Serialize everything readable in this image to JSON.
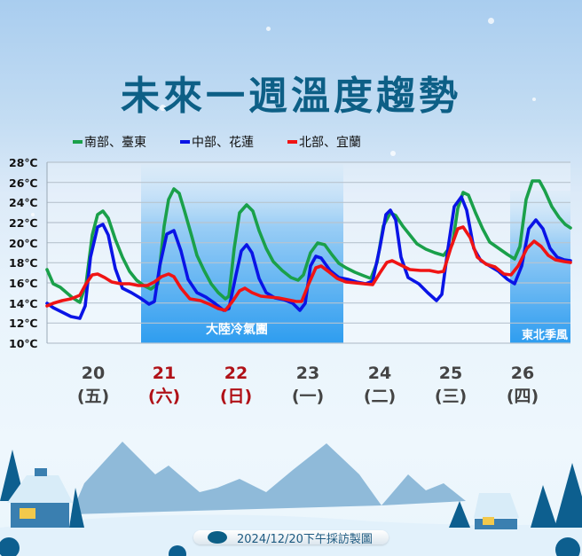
{
  "title": "未來一週溫度趨勢",
  "legend": [
    {
      "label": "南部、臺東",
      "color": "#1aa04a"
    },
    {
      "label": "中部、花蓮",
      "color": "#0a14e6"
    },
    {
      "label": "北部、宜蘭",
      "color": "#f01414"
    }
  ],
  "y_ticks": [
    "28℃",
    "26℃",
    "24℃",
    "22℃",
    "20℃",
    "18℃",
    "16℃",
    "14℃",
    "12℃",
    "10℃"
  ],
  "regions": [
    {
      "label": "大陸冷氣團"
    },
    {
      "label": "東北季風"
    }
  ],
  "days": [
    {
      "date": "20",
      "weekday": "(五)",
      "weekend": false
    },
    {
      "date": "21",
      "weekday": "(六)",
      "weekend": true
    },
    {
      "date": "22",
      "weekday": "(日)",
      "weekend": true
    },
    {
      "date": "23",
      "weekday": "(一)",
      "weekend": false
    },
    {
      "date": "24",
      "weekday": "(二)",
      "weekend": false
    },
    {
      "date": "25",
      "weekday": "(三)",
      "weekend": false
    },
    {
      "date": "26",
      "weekday": "(四)",
      "weekend": false
    }
  ],
  "footer": "2024/12/20下午採訪製圖",
  "chart_data": {
    "type": "line",
    "title": "未來一週溫度趨勢",
    "xlabel": "",
    "ylabel": "",
    "ylim": [
      10,
      28
    ],
    "grid": true,
    "legend_position": "top",
    "categories": [
      "20 (五)",
      "21 (六)",
      "22 (日)",
      "23 (一)",
      "24 (二)",
      "25 (三)",
      "26 (四)"
    ],
    "annotations": [
      {
        "text": "大陸冷氣團",
        "x_range_days": [
          "21",
          "23"
        ]
      },
      {
        "text": "東北季風",
        "x_range_days": [
          "26",
          "26"
        ]
      }
    ],
    "daily_range": {
      "南部、臺東": [
        [
          14.0,
          23.3
        ],
        [
          15.2,
          25.2
        ],
        [
          14.5,
          23.7
        ],
        [
          16.3,
          19.9
        ],
        [
          16.2,
          23.0
        ],
        [
          18.0,
          25.0
        ],
        [
          18.0,
          26.4
        ]
      ],
      "中部、花蓮": [
        [
          12.5,
          21.8
        ],
        [
          13.6,
          21.3
        ],
        [
          13.3,
          19.9
        ],
        [
          13.2,
          18.7
        ],
        [
          16.0,
          23.3
        ],
        [
          14.9,
          24.8
        ],
        [
          16.0,
          22.4
        ]
      ],
      "北部、宜蘭": [
        [
          13.7,
          17.0
        ],
        [
          15.8,
          17.0
        ],
        [
          13.1,
          15.5
        ],
        [
          14.1,
          17.6
        ],
        [
          15.8,
          18.3
        ],
        [
          17.0,
          21.6
        ],
        [
          16.9,
          20.2
        ]
      ]
    },
    "series": [
      {
        "name": "南部、臺東",
        "color": "#1aa04a",
        "points": [
          [
            53,
            304
          ],
          [
            60,
            320
          ],
          [
            68,
            324
          ],
          [
            75,
            330
          ],
          [
            82,
            336
          ],
          [
            90,
            341
          ],
          [
            97,
            320
          ],
          [
            104,
            265
          ],
          [
            110,
            242
          ],
          [
            116,
            238
          ],
          [
            122,
            246
          ],
          [
            130,
            270
          ],
          [
            138,
            290
          ],
          [
            146,
            306
          ],
          [
            154,
            316
          ],
          [
            162,
            322
          ],
          [
            170,
            326
          ],
          [
            178,
            320
          ],
          [
            185,
            255
          ],
          [
            190,
            225
          ],
          [
            196,
            213
          ],
          [
            202,
            218
          ],
          [
            208,
            238
          ],
          [
            216,
            266
          ],
          [
            222,
            288
          ],
          [
            230,
            305
          ],
          [
            238,
            320
          ],
          [
            246,
            330
          ],
          [
            254,
            337
          ],
          [
            258,
            334
          ],
          [
            264,
            280
          ],
          [
            270,
            240
          ],
          [
            278,
            231
          ],
          [
            285,
            238
          ],
          [
            292,
            260
          ],
          [
            300,
            280
          ],
          [
            308,
            295
          ],
          [
            318,
            305
          ],
          [
            328,
            313
          ],
          [
            336,
            316
          ],
          [
            342,
            310
          ],
          [
            350,
            285
          ],
          [
            358,
            274
          ],
          [
            366,
            276
          ],
          [
            374,
            287
          ],
          [
            382,
            297
          ],
          [
            390,
            302
          ],
          [
            400,
            307
          ],
          [
            410,
            311
          ],
          [
            418,
            314
          ],
          [
            425,
            296
          ],
          [
            432,
            255
          ],
          [
            440,
            240
          ],
          [
            446,
            243
          ],
          [
            454,
            255
          ],
          [
            462,
            265
          ],
          [
            470,
            275
          ],
          [
            480,
            281
          ],
          [
            490,
            285
          ],
          [
            500,
            288
          ],
          [
            510,
            275
          ],
          [
            516,
            235
          ],
          [
            522,
            217
          ],
          [
            528,
            220
          ],
          [
            536,
            240
          ],
          [
            544,
            258
          ],
          [
            552,
            273
          ],
          [
            562,
            280
          ],
          [
            572,
            287
          ],
          [
            580,
            292
          ],
          [
            586,
            278
          ],
          [
            593,
            225
          ],
          [
            600,
            204
          ],
          [
            608,
            204
          ],
          [
            614,
            215
          ],
          [
            622,
            233
          ],
          [
            630,
            245
          ],
          [
            637,
            253
          ],
          [
            643,
            257
          ]
        ]
      },
      {
        "name": "中部、花蓮",
        "color": "#0a14e6",
        "points": [
          [
            53,
            342
          ],
          [
            60,
            347
          ],
          [
            70,
            352
          ],
          [
            80,
            357
          ],
          [
            90,
            359
          ],
          [
            96,
            345
          ],
          [
            102,
            290
          ],
          [
            110,
            256
          ],
          [
            116,
            253
          ],
          [
            122,
            265
          ],
          [
            130,
            303
          ],
          [
            138,
            325
          ],
          [
            148,
            330
          ],
          [
            158,
            336
          ],
          [
            168,
            343
          ],
          [
            174,
            340
          ],
          [
            180,
            300
          ],
          [
            188,
            264
          ],
          [
            196,
            260
          ],
          [
            204,
            283
          ],
          [
            212,
            315
          ],
          [
            222,
            330
          ],
          [
            232,
            335
          ],
          [
            242,
            342
          ],
          [
            252,
            350
          ],
          [
            258,
            348
          ],
          [
            266,
            310
          ],
          [
            272,
            283
          ],
          [
            278,
            276
          ],
          [
            284,
            285
          ],
          [
            292,
            314
          ],
          [
            300,
            330
          ],
          [
            310,
            336
          ],
          [
            320,
            338
          ],
          [
            330,
            342
          ],
          [
            338,
            350
          ],
          [
            344,
            342
          ],
          [
            350,
            300
          ],
          [
            356,
            289
          ],
          [
            362,
            291
          ],
          [
            372,
            305
          ],
          [
            382,
            313
          ],
          [
            392,
            315
          ],
          [
            402,
            318
          ],
          [
            412,
            320
          ],
          [
            420,
            317
          ],
          [
            428,
            280
          ],
          [
            435,
            242
          ],
          [
            440,
            237
          ],
          [
            446,
            248
          ],
          [
            452,
            290
          ],
          [
            460,
            313
          ],
          [
            472,
            320
          ],
          [
            482,
            330
          ],
          [
            492,
            339
          ],
          [
            498,
            332
          ],
          [
            505,
            280
          ],
          [
            512,
            233
          ],
          [
            520,
            222
          ],
          [
            526,
            237
          ],
          [
            534,
            280
          ],
          [
            542,
            294
          ],
          [
            552,
            300
          ],
          [
            562,
            306
          ],
          [
            572,
            315
          ],
          [
            580,
            320
          ],
          [
            588,
            300
          ],
          [
            596,
            258
          ],
          [
            604,
            248
          ],
          [
            612,
            258
          ],
          [
            620,
            280
          ],
          [
            628,
            290
          ],
          [
            636,
            293
          ],
          [
            643,
            294
          ]
        ]
      },
      {
        "name": "北部、宜蘭",
        "color": "#f01414",
        "points": [
          [
            53,
            345
          ],
          [
            60,
            342
          ],
          [
            70,
            339
          ],
          [
            80,
            337
          ],
          [
            90,
            333
          ],
          [
            97,
            320
          ],
          [
            104,
            310
          ],
          [
            110,
            309
          ],
          [
            118,
            313
          ],
          [
            126,
            318
          ],
          [
            136,
            320
          ],
          [
            146,
            320
          ],
          [
            156,
            322
          ],
          [
            166,
            322
          ],
          [
            174,
            318
          ],
          [
            182,
            312
          ],
          [
            190,
            309
          ],
          [
            196,
            312
          ],
          [
            204,
            325
          ],
          [
            214,
            337
          ],
          [
            226,
            339
          ],
          [
            236,
            343
          ],
          [
            246,
            348
          ],
          [
            254,
            350
          ],
          [
            262,
            340
          ],
          [
            270,
            328
          ],
          [
            276,
            325
          ],
          [
            284,
            330
          ],
          [
            294,
            334
          ],
          [
            304,
            335
          ],
          [
            314,
            336
          ],
          [
            324,
            338
          ],
          [
            334,
            340
          ],
          [
            340,
            340
          ],
          [
            348,
            320
          ],
          [
            356,
            302
          ],
          [
            362,
            300
          ],
          [
            370,
            306
          ],
          [
            380,
            314
          ],
          [
            390,
            318
          ],
          [
            400,
            319
          ],
          [
            410,
            320
          ],
          [
            420,
            321
          ],
          [
            428,
            308
          ],
          [
            436,
            296
          ],
          [
            442,
            294
          ],
          [
            452,
            299
          ],
          [
            462,
            304
          ],
          [
            474,
            305
          ],
          [
            484,
            305
          ],
          [
            494,
            307
          ],
          [
            500,
            306
          ],
          [
            508,
            280
          ],
          [
            516,
            258
          ],
          [
            522,
            256
          ],
          [
            530,
            268
          ],
          [
            538,
            290
          ],
          [
            548,
            298
          ],
          [
            558,
            301
          ],
          [
            568,
            309
          ],
          [
            576,
            310
          ],
          [
            584,
            300
          ],
          [
            594,
            280
          ],
          [
            602,
            272
          ],
          [
            610,
            278
          ],
          [
            618,
            288
          ],
          [
            626,
            293
          ],
          [
            636,
            295
          ],
          [
            643,
            296
          ]
        ]
      }
    ],
    "points_note": "series.points are pixel coords within the 656x627 canvas; y=387 is 10℃, y=183 is 28℃"
  }
}
